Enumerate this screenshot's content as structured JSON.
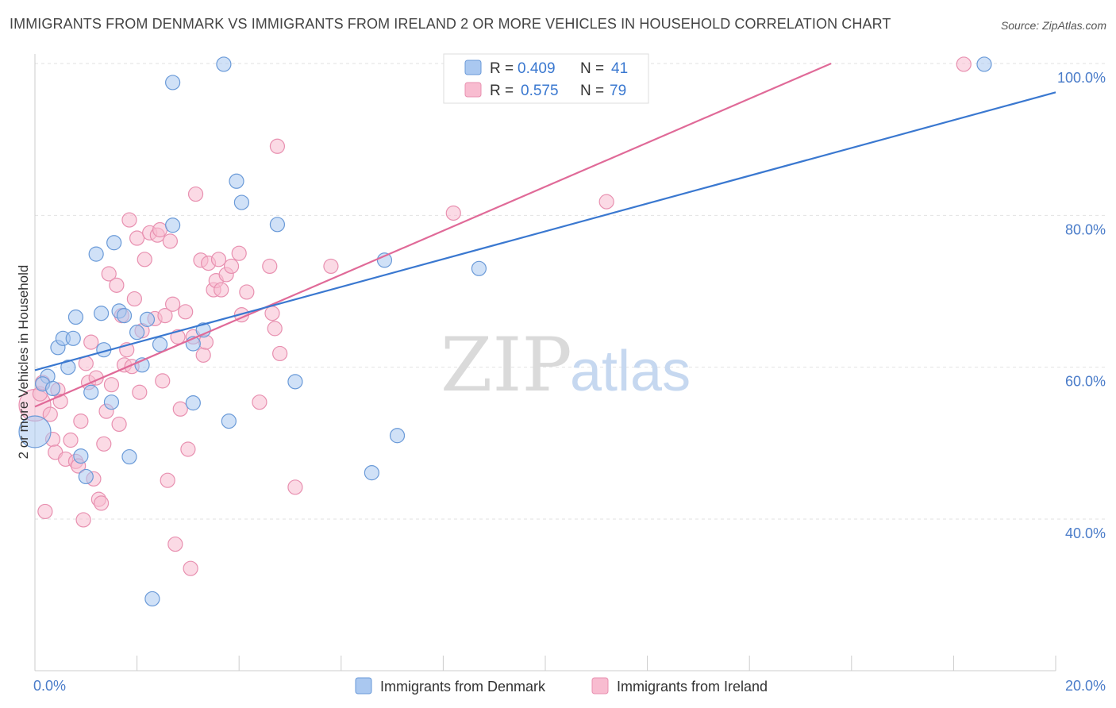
{
  "title": "IMMIGRANTS FROM DENMARK VS IMMIGRANTS FROM IRELAND 2 OR MORE VEHICLES IN HOUSEHOLD CORRELATION CHART",
  "source": "Source: ZipAtlas.com",
  "watermark": {
    "zip": "ZIP",
    "atlas": "atlas"
  },
  "colors": {
    "denmark_fill": "#aac8f0",
    "denmark_stroke": "#6a9ad8",
    "denmark_line": "#3a78d0",
    "ireland_fill": "#f8bcd0",
    "ireland_stroke": "#e890b0",
    "ireland_line": "#e06a98",
    "tick_color": "#4a7cc9"
  },
  "legend": {
    "rows": [
      {
        "r_label": "R = ",
        "r_value": "0.409",
        "n_label": "N = ",
        "n_value": "41"
      },
      {
        "r_label": "R = ",
        "r_value": "0.575",
        "n_label": "N = ",
        "n_value": "79"
      }
    ]
  },
  "chart_data": {
    "type": "scatter",
    "title": "IMMIGRANTS FROM DENMARK VS IMMIGRANTS FROM IRELAND 2 OR MORE VEHICLES IN HOUSEHOLD CORRELATION CHART",
    "xlabel": "",
    "ylabel": "2 or more Vehicles in Household",
    "xlim": [
      0,
      20
    ],
    "ylim": [
      20,
      103
    ],
    "x_tick_labels": [
      "0.0%",
      "20.0%"
    ],
    "y_ticks": [
      40,
      60,
      80,
      100
    ],
    "y_tick_labels": [
      "40.0%",
      "60.0%",
      "80.0%",
      "100.0%"
    ],
    "grid": true,
    "legend_position": "top-center",
    "series": [
      {
        "name": "Immigrants from Denmark",
        "R": 0.409,
        "N": 41,
        "trend": {
          "x": [
            0,
            20
          ],
          "y": [
            59.6,
            96.2
          ]
        },
        "points": [
          {
            "x": 0.0,
            "y": 51.5,
            "big": true
          },
          {
            "x": 0.25,
            "y": 58.8
          },
          {
            "x": 0.15,
            "y": 57.8
          },
          {
            "x": 0.35,
            "y": 57.2
          },
          {
            "x": 0.45,
            "y": 62.6
          },
          {
            "x": 0.55,
            "y": 63.8
          },
          {
            "x": 0.65,
            "y": 60.0
          },
          {
            "x": 0.75,
            "y": 63.8
          },
          {
            "x": 0.8,
            "y": 66.6
          },
          {
            "x": 0.9,
            "y": 48.3
          },
          {
            "x": 1.0,
            "y": 45.6
          },
          {
            "x": 1.1,
            "y": 56.7
          },
          {
            "x": 1.2,
            "y": 74.9
          },
          {
            "x": 1.3,
            "y": 67.1
          },
          {
            "x": 1.35,
            "y": 62.3
          },
          {
            "x": 1.5,
            "y": 55.4
          },
          {
            "x": 1.55,
            "y": 76.4
          },
          {
            "x": 1.65,
            "y": 67.4
          },
          {
            "x": 1.75,
            "y": 66.8
          },
          {
            "x": 1.85,
            "y": 48.2
          },
          {
            "x": 2.0,
            "y": 64.6
          },
          {
            "x": 2.1,
            "y": 60.3
          },
          {
            "x": 2.2,
            "y": 66.3
          },
          {
            "x": 2.3,
            "y": 29.5
          },
          {
            "x": 2.45,
            "y": 63.0
          },
          {
            "x": 2.7,
            "y": 78.7
          },
          {
            "x": 2.7,
            "y": 97.5
          },
          {
            "x": 3.1,
            "y": 63.1
          },
          {
            "x": 3.1,
            "y": 55.3
          },
          {
            "x": 3.3,
            "y": 64.9
          },
          {
            "x": 3.7,
            "y": 99.9
          },
          {
            "x": 3.8,
            "y": 52.9
          },
          {
            "x": 3.95,
            "y": 84.5
          },
          {
            "x": 4.05,
            "y": 81.7
          },
          {
            "x": 4.75,
            "y": 78.8
          },
          {
            "x": 5.1,
            "y": 58.1
          },
          {
            "x": 6.6,
            "y": 46.1
          },
          {
            "x": 6.85,
            "y": 74.1
          },
          {
            "x": 7.1,
            "y": 51.0
          },
          {
            "x": 8.7,
            "y": 73.0
          },
          {
            "x": 18.6,
            "y": 99.9
          }
        ]
      },
      {
        "name": "Immigrants from Ireland",
        "R": 0.575,
        "N": 79,
        "trend": {
          "x": [
            0,
            15.6
          ],
          "y": [
            54.8,
            100.0
          ]
        },
        "points": [
          {
            "x": 0.0,
            "y": 55.0,
            "big": true
          },
          {
            "x": 0.1,
            "y": 56.5
          },
          {
            "x": 0.2,
            "y": 41.0
          },
          {
            "x": 0.3,
            "y": 53.8
          },
          {
            "x": 0.35,
            "y": 50.5
          },
          {
            "x": 0.4,
            "y": 48.8
          },
          {
            "x": 0.45,
            "y": 57.0
          },
          {
            "x": 0.5,
            "y": 55.5
          },
          {
            "x": 0.6,
            "y": 47.9
          },
          {
            "x": 0.7,
            "y": 50.4
          },
          {
            "x": 0.8,
            "y": 47.6
          },
          {
            "x": 0.85,
            "y": 47.0
          },
          {
            "x": 0.9,
            "y": 52.9
          },
          {
            "x": 0.95,
            "y": 39.9
          },
          {
            "x": 1.0,
            "y": 60.5
          },
          {
            "x": 1.05,
            "y": 58.0
          },
          {
            "x": 1.1,
            "y": 63.3
          },
          {
            "x": 1.15,
            "y": 45.3
          },
          {
            "x": 1.2,
            "y": 58.6
          },
          {
            "x": 1.25,
            "y": 42.6
          },
          {
            "x": 1.3,
            "y": 42.1
          },
          {
            "x": 1.35,
            "y": 49.9
          },
          {
            "x": 1.4,
            "y": 54.2
          },
          {
            "x": 1.45,
            "y": 72.3
          },
          {
            "x": 1.5,
            "y": 57.7
          },
          {
            "x": 1.6,
            "y": 70.8
          },
          {
            "x": 1.65,
            "y": 52.5
          },
          {
            "x": 1.7,
            "y": 66.8
          },
          {
            "x": 1.75,
            "y": 60.3
          },
          {
            "x": 1.8,
            "y": 62.3
          },
          {
            "x": 1.85,
            "y": 79.4
          },
          {
            "x": 1.9,
            "y": 60.1
          },
          {
            "x": 1.95,
            "y": 69.0
          },
          {
            "x": 2.0,
            "y": 77.0
          },
          {
            "x": 2.05,
            "y": 56.7
          },
          {
            "x": 2.1,
            "y": 64.8
          },
          {
            "x": 2.15,
            "y": 74.2
          },
          {
            "x": 2.25,
            "y": 77.7
          },
          {
            "x": 2.35,
            "y": 66.4
          },
          {
            "x": 2.4,
            "y": 77.4
          },
          {
            "x": 2.45,
            "y": 78.1
          },
          {
            "x": 2.5,
            "y": 58.2
          },
          {
            "x": 2.55,
            "y": 66.8
          },
          {
            "x": 2.6,
            "y": 45.1
          },
          {
            "x": 2.65,
            "y": 76.6
          },
          {
            "x": 2.7,
            "y": 68.3
          },
          {
            "x": 2.75,
            "y": 36.7
          },
          {
            "x": 2.8,
            "y": 64.0
          },
          {
            "x": 2.85,
            "y": 54.5
          },
          {
            "x": 2.95,
            "y": 67.3
          },
          {
            "x": 3.0,
            "y": 49.2
          },
          {
            "x": 3.05,
            "y": 33.5
          },
          {
            "x": 3.1,
            "y": 64.0
          },
          {
            "x": 3.15,
            "y": 82.8
          },
          {
            "x": 3.25,
            "y": 74.1
          },
          {
            "x": 3.3,
            "y": 61.6
          },
          {
            "x": 3.35,
            "y": 63.3
          },
          {
            "x": 3.4,
            "y": 73.7
          },
          {
            "x": 3.5,
            "y": 70.2
          },
          {
            "x": 3.55,
            "y": 71.4
          },
          {
            "x": 3.6,
            "y": 74.2
          },
          {
            "x": 3.65,
            "y": 70.2
          },
          {
            "x": 3.75,
            "y": 72.2
          },
          {
            "x": 3.85,
            "y": 73.3
          },
          {
            "x": 4.0,
            "y": 75.0
          },
          {
            "x": 4.05,
            "y": 66.9
          },
          {
            "x": 4.15,
            "y": 69.9
          },
          {
            "x": 4.4,
            "y": 55.4
          },
          {
            "x": 4.6,
            "y": 73.3
          },
          {
            "x": 4.65,
            "y": 67.1
          },
          {
            "x": 4.7,
            "y": 65.1
          },
          {
            "x": 4.75,
            "y": 89.1
          },
          {
            "x": 4.8,
            "y": 61.8
          },
          {
            "x": 5.1,
            "y": 44.2
          },
          {
            "x": 5.8,
            "y": 73.3
          },
          {
            "x": 8.2,
            "y": 80.3
          },
          {
            "x": 11.2,
            "y": 81.8
          },
          {
            "x": 18.2,
            "y": 99.9
          },
          {
            "x": 0.15,
            "y": 58.0
          }
        ]
      }
    ]
  }
}
